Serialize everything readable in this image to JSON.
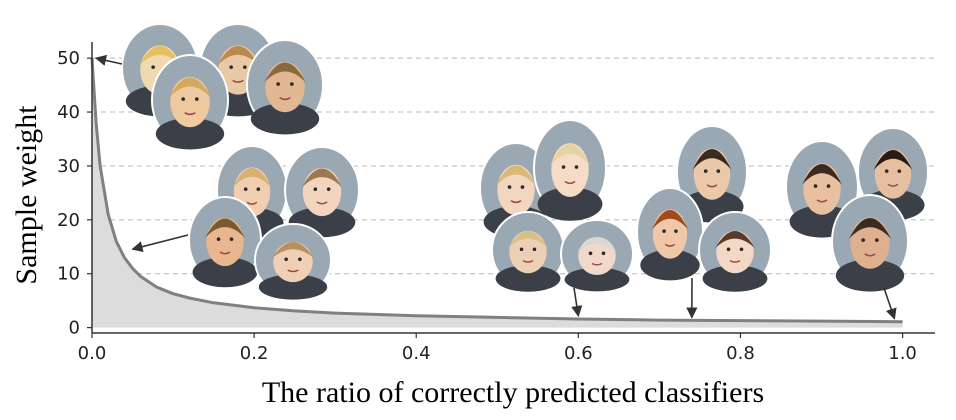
{
  "chart_data": {
    "type": "area",
    "title": "",
    "xlabel": "The ratio of correctly predicted classifiers",
    "ylabel": "Sample weight",
    "xlim": [
      0,
      1.04
    ],
    "ylim": [
      -1,
      53
    ],
    "grid": "horizontal dashed",
    "x_ticks": [
      0.0,
      0.2,
      0.4,
      0.6,
      0.8,
      1.0
    ],
    "x_tick_labels": [
      "0.0",
      "0.2",
      "0.4",
      "0.6",
      "0.8",
      "1.0"
    ],
    "y_ticks": [
      0,
      10,
      20,
      30,
      40,
      50
    ],
    "y_tick_labels": [
      "0",
      "10",
      "20",
      "30",
      "40",
      "50"
    ],
    "series": [
      {
        "x": [
          0.0,
          0.005,
          0.01,
          0.02,
          0.03,
          0.04,
          0.05,
          0.06,
          0.08,
          0.1,
          0.12,
          0.15,
          0.2,
          0.25,
          0.3,
          0.4,
          0.5,
          0.6,
          0.7,
          0.8,
          0.9,
          1.0
        ],
        "values": [
          50,
          38,
          30,
          21,
          16,
          13,
          11,
          9.5,
          7.5,
          6.3,
          5.5,
          4.6,
          3.7,
          3.1,
          2.7,
          2.2,
          1.9,
          1.6,
          1.4,
          1.3,
          1.2,
          1.1
        ],
        "line_color": "#808080",
        "fill_color": "#dcdcdc"
      }
    ],
    "annotations": [
      {
        "kind": "face-group",
        "faces": 4,
        "points_to": {
          "x": 0.0,
          "y": 50
        }
      },
      {
        "kind": "face-group",
        "faces": 4,
        "points_to": {
          "x": 0.05,
          "y": 14
        }
      },
      {
        "kind": "face-group",
        "faces": 4,
        "points_to": {
          "x": 0.6,
          "y": 1.6
        }
      },
      {
        "kind": "face-group",
        "faces": 3,
        "points_to": {
          "x": 0.74,
          "y": 1.3
        }
      },
      {
        "kind": "face-group",
        "faces": 3,
        "points_to": {
          "x": 0.99,
          "y": 1.1
        }
      }
    ]
  }
}
